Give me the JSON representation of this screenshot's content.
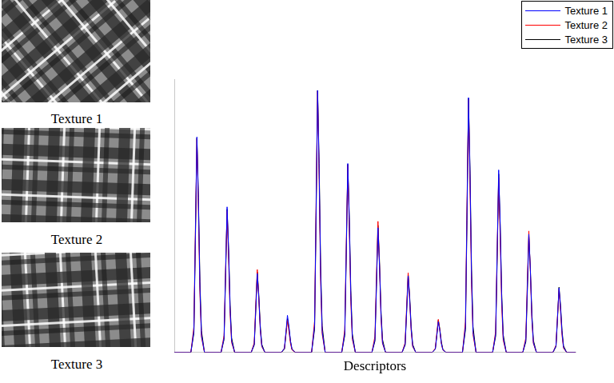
{
  "textures": [
    "Texture 1",
    "Texture 2",
    "Texture 3"
  ],
  "chart_data": {
    "type": "line",
    "xlabel": "Descriptors",
    "legend": "top-right",
    "grid": false,
    "tick_labels": false,
    "xlim": [
      0,
      133
    ],
    "ylim": [
      0,
      340
    ],
    "x": [
      0,
      5.5,
      6.5,
      7,
      7.5,
      8,
      8.5,
      9,
      10,
      15.5,
      16.5,
      17,
      17.5,
      18,
      18.5,
      19,
      20,
      25.5,
      26.5,
      27,
      27.5,
      28,
      28.5,
      29,
      30,
      35.5,
      36.5,
      37,
      37.5,
      38,
      38.5,
      39,
      40,
      45.5,
      46.5,
      47,
      47.5,
      48,
      48.5,
      49,
      50,
      55.5,
      56.5,
      57,
      57.5,
      58,
      58.5,
      59,
      60,
      65.5,
      66.5,
      67,
      67.5,
      68,
      68.5,
      69,
      70,
      75.5,
      76.5,
      77,
      77.5,
      78,
      78.5,
      79,
      80,
      85.5,
      86.5,
      87,
      87.5,
      88,
      88.5,
      89,
      90,
      95.5,
      96.5,
      97,
      97.5,
      98,
      98.5,
      99,
      100,
      105.5,
      106.5,
      107,
      107.5,
      108,
      108.5,
      109,
      110,
      115.5,
      116.5,
      117,
      117.5,
      118,
      118.5,
      119,
      120,
      125.5,
      126.5,
      127,
      127.5,
      128,
      128.5,
      129,
      130,
      133
    ],
    "series": [
      {
        "name": "Texture 1",
        "color": "#0000ff",
        "values": [
          0,
          0,
          27,
          147,
          268,
          188,
          80,
          21,
          0,
          0,
          18,
          100,
          181,
          127,
          54,
          14,
          0,
          0,
          10,
          54,
          98,
          69,
          29,
          8,
          0,
          0,
          5,
          25,
          46,
          32,
          14,
          4,
          0,
          0,
          33,
          179,
          326,
          228,
          98,
          26,
          0,
          0,
          24,
          129,
          235,
          165,
          71,
          19,
          0,
          0,
          16,
          85,
          155,
          109,
          47,
          12,
          0,
          0,
          10,
          52,
          95,
          67,
          29,
          8,
          0,
          0,
          4,
          21,
          38,
          27,
          11,
          3,
          0,
          0,
          32,
          174,
          317,
          222,
          95,
          25,
          0,
          0,
          23,
          125,
          227,
          159,
          68,
          18,
          0,
          0,
          15,
          81,
          147,
          103,
          44,
          12,
          0,
          0,
          8,
          44,
          80,
          56,
          24,
          6,
          0,
          0
        ]
      },
      {
        "name": "Texture 2",
        "color": "#ff0000",
        "values": [
          0,
          0,
          32,
          154,
          266,
          176,
          72,
          19,
          0,
          0,
          21,
          102,
          176,
          116,
          48,
          12,
          0,
          0,
          12,
          60,
          103,
          68,
          28,
          7,
          0,
          0,
          5,
          23,
          40,
          26,
          11,
          3,
          0,
          0,
          39,
          189,
          325,
          215,
          88,
          23,
          0,
          0,
          28,
          135,
          233,
          154,
          63,
          16,
          0,
          0,
          20,
          95,
          163,
          108,
          44,
          11,
          0,
          0,
          12,
          57,
          99,
          65,
          27,
          7,
          0,
          0,
          5,
          24,
          41,
          27,
          11,
          3,
          0,
          0,
          38,
          183,
          315,
          208,
          85,
          22,
          0,
          0,
          26,
          126,
          217,
          143,
          59,
          15,
          0,
          0,
          18,
          88,
          151,
          100,
          41,
          11,
          0,
          0,
          9,
          45,
          78,
          51,
          21,
          5,
          0,
          0
        ]
      },
      {
        "name": "Texture 3",
        "color": "#000000",
        "values": [
          0,
          0,
          24,
          139,
          267,
          192,
          88,
          27,
          0,
          0,
          16,
          93,
          178,
          128,
          59,
          18,
          0,
          0,
          9,
          52,
          100,
          72,
          33,
          10,
          0,
          0,
          4,
          22,
          42,
          30,
          14,
          4,
          0,
          0,
          29,
          170,
          326,
          235,
          108,
          33,
          0,
          0,
          21,
          122,
          234,
          168,
          77,
          23,
          0,
          0,
          14,
          82,
          158,
          114,
          52,
          16,
          0,
          0,
          9,
          50,
          97,
          70,
          32,
          10,
          0,
          0,
          4,
          21,
          40,
          29,
          13,
          4,
          0,
          0,
          28,
          164,
          316,
          228,
          104,
          32,
          0,
          0,
          20,
          115,
          222,
          160,
          73,
          22,
          0,
          0,
          13,
          75,
          145,
          104,
          48,
          15,
          0,
          0,
          7,
          42,
          81,
          58,
          27,
          8,
          0,
          0
        ]
      }
    ]
  }
}
